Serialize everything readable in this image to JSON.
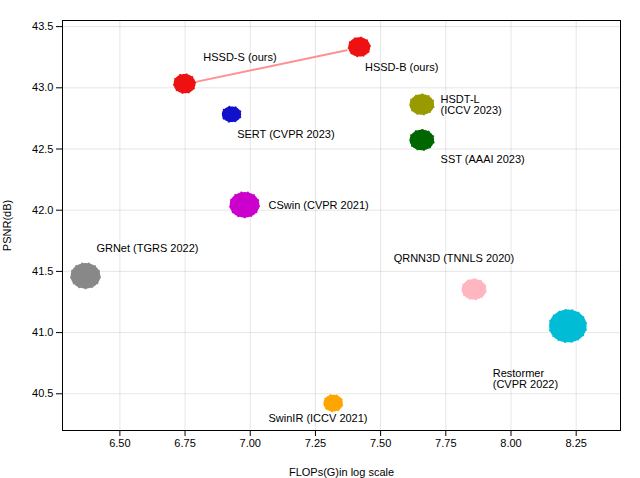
{
  "chart_data": {
    "type": "scatter",
    "xlabel": "FLOPs(G)in log scale",
    "ylabel": "PSNR(dB)",
    "xlim": [
      6.28,
      8.42
    ],
    "ylim": [
      40.2,
      43.55
    ],
    "xticks": [
      {
        "value": 6.5,
        "label": "6.50"
      },
      6.75,
      {
        "value": 7.0,
        "label": "7.00"
      },
      7.25,
      {
        "value": 7.5,
        "label": "7.50"
      },
      7.75,
      {
        "value": 8.0,
        "label": "8.00"
      },
      8.25
    ],
    "yticks": [
      40.5,
      {
        "value": 41.0,
        "label": "41.0"
      },
      41.5,
      {
        "value": 42.0,
        "label": "42.0"
      },
      42.5,
      {
        "value": 43.0,
        "label": "43.0"
      },
      43.5
    ],
    "grid": true,
    "line": {
      "x": [
        6.75,
        7.42
      ],
      "y": [
        43.03,
        43.33
      ],
      "color": "#FF9090"
    },
    "points": [
      {
        "label": "HSSD-S (ours)",
        "x": 6.75,
        "y": 43.03,
        "color": "#EE1111",
        "width": 0.09,
        "height": 0.17,
        "label_x": 6.82,
        "label_y": 43.22
      },
      {
        "label": "HSSD-B (ours)",
        "x": 7.42,
        "y": 43.33,
        "color": "#EE1111",
        "width": 0.09,
        "height": 0.17,
        "label_x": 7.44,
        "label_y": 43.2
      },
      {
        "label": "SERT (CVPR 2023)",
        "x": 6.93,
        "y": 42.78,
        "color": "#1111CC",
        "width": 0.08,
        "height": 0.14,
        "label_x": 6.95,
        "label_y": 42.65
      },
      {
        "label": "HSDT-L\n(ICCV 2023)",
        "x": 7.66,
        "y": 42.86,
        "color": "#999900",
        "width": 0.1,
        "height": 0.18,
        "label_x": 7.73,
        "label_y": 42.86
      },
      {
        "label": "SST (AAAI 2023)",
        "x": 7.66,
        "y": 42.57,
        "color": "#006600",
        "width": 0.1,
        "height": 0.18,
        "label_x": 7.73,
        "label_y": 42.45
      },
      {
        "label": "CSwin (CVPR 2021)",
        "x": 6.98,
        "y": 42.04,
        "color": "#CC00CC",
        "width": 0.12,
        "height": 0.22,
        "label_x": 7.07,
        "label_y": 42.04
      },
      {
        "label": "GRNet (TGRS 2022)",
        "x": 6.37,
        "y": 41.46,
        "color": "#888888",
        "width": 0.12,
        "height": 0.22,
        "label_x": 6.41,
        "label_y": 41.66
      },
      {
        "label": "QRNN3D (TNNLS 2020)",
        "x": 7.86,
        "y": 41.35,
        "color": "#FFB6C1",
        "width": 0.1,
        "height": 0.18,
        "label_x": 7.55,
        "label_y": 41.58
      },
      {
        "label": "SwinIR (ICCV 2021)",
        "x": 7.32,
        "y": 40.42,
        "color": "#FFA500",
        "width": 0.08,
        "height": 0.15,
        "label_x": 7.07,
        "label_y": 40.33
      },
      {
        "label": "Restormer\n(CVPR 2022)",
        "x": 8.22,
        "y": 41.05,
        "color": "#00BCD4",
        "width": 0.15,
        "height": 0.28,
        "label_x": 7.93,
        "label_y": 40.7
      }
    ]
  }
}
